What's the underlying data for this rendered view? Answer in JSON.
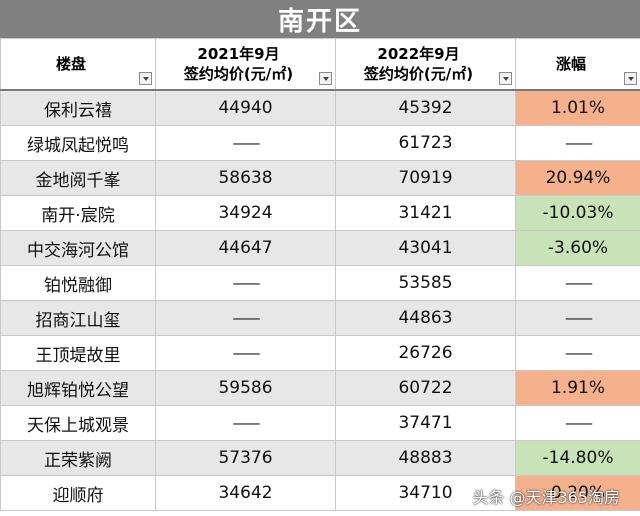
{
  "title": "南开区",
  "headers": {
    "project": "楼盘",
    "y2021_line1": "2021年9月",
    "y2021_line2": "签约均价(元/㎡)",
    "y2022_line1": "2022年9月",
    "y2022_line2": "签约均价(元/㎡)",
    "change": "涨幅"
  },
  "rows": [
    {
      "name": "保利云禧",
      "p2021": "44940",
      "p2022": "45392",
      "change": "1.01%",
      "trend": "up"
    },
    {
      "name": "绿城凤起悦鸣",
      "p2021": "——",
      "p2022": "61723",
      "change": "——",
      "trend": "none"
    },
    {
      "name": "金地阅千峯",
      "p2021": "58638",
      "p2022": "70919",
      "change": "20.94%",
      "trend": "up"
    },
    {
      "name": "南开·宸院",
      "p2021": "34924",
      "p2022": "31421",
      "change": "-10.03%",
      "trend": "down"
    },
    {
      "name": "中交海河公馆",
      "p2021": "44647",
      "p2022": "43041",
      "change": "-3.60%",
      "trend": "down"
    },
    {
      "name": "铂悦融御",
      "p2021": "——",
      "p2022": "53585",
      "change": "——",
      "trend": "none"
    },
    {
      "name": "招商江山玺",
      "p2021": "——",
      "p2022": "44863",
      "change": "——",
      "trend": "none"
    },
    {
      "name": "王顶堤故里",
      "p2021": "——",
      "p2022": "26726",
      "change": "——",
      "trend": "none"
    },
    {
      "name": "旭辉铂悦公望",
      "p2021": "59586",
      "p2022": "60722",
      "change": "1.91%",
      "trend": "up"
    },
    {
      "name": "天保上城观景",
      "p2021": "——",
      "p2022": "37471",
      "change": "——",
      "trend": "none"
    },
    {
      "name": "正荣紫阙",
      "p2021": "57376",
      "p2022": "48883",
      "change": "-14.80%",
      "trend": "down"
    },
    {
      "name": "迎顺府",
      "p2021": "34642",
      "p2022": "34710",
      "change": "0.20%",
      "trend": "up"
    }
  ],
  "watermark": "头条 @天津365淘房",
  "colors": {
    "header_bar": "#808080",
    "up": "#f5b08c",
    "down": "#c8e3b7"
  }
}
